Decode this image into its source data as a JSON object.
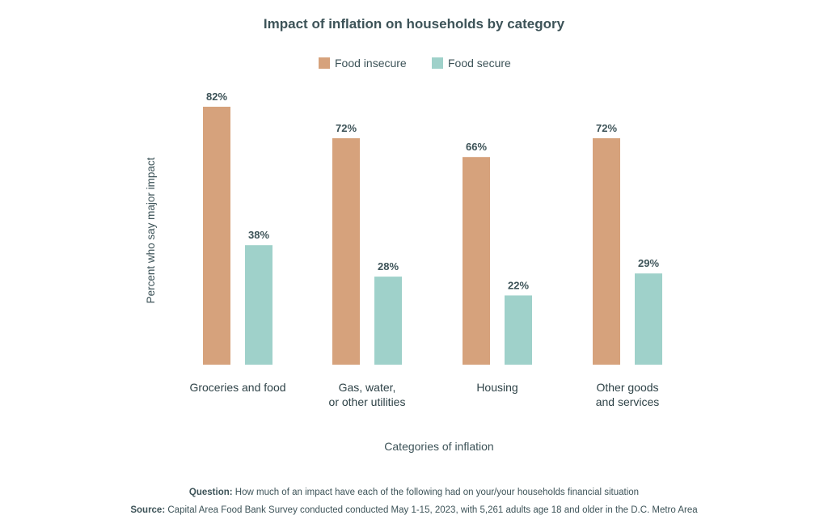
{
  "colors": {
    "series_0": "#d6a27c",
    "series_1": "#9fd1ca",
    "text": "#3d5358"
  },
  "chart_data": {
    "type": "bar",
    "title": "Impact of inflation on households by category",
    "ylabel": "Percent who say major impact",
    "xlabel": "Categories of inflation",
    "legend_position": "top",
    "grid": false,
    "ylim": [
      0,
      82
    ],
    "categories": [
      [
        "Groceries and food"
      ],
      [
        "Gas, water,",
        "or other utilities"
      ],
      [
        "Housing"
      ],
      [
        "Other goods",
        "and services"
      ]
    ],
    "series": [
      {
        "name": "Food insecure",
        "values": [
          82,
          72,
          66,
          72
        ],
        "labels": [
          "82%",
          "72%",
          "66%",
          "72%"
        ]
      },
      {
        "name": "Food secure",
        "values": [
          38,
          28,
          22,
          29
        ],
        "labels": [
          "38%",
          "28%",
          "22%",
          "29%"
        ]
      }
    ]
  },
  "footnotes": {
    "question_label": "Question:",
    "question_text": " How much of an impact have each of the following had on your/your households financial situation",
    "source_label": "Source:",
    "source_text": " Capital Area Food Bank Survey conducted conducted May 1-15, 2023, with 5,261 adults age 18 and older in the D.C. Metro Area"
  }
}
